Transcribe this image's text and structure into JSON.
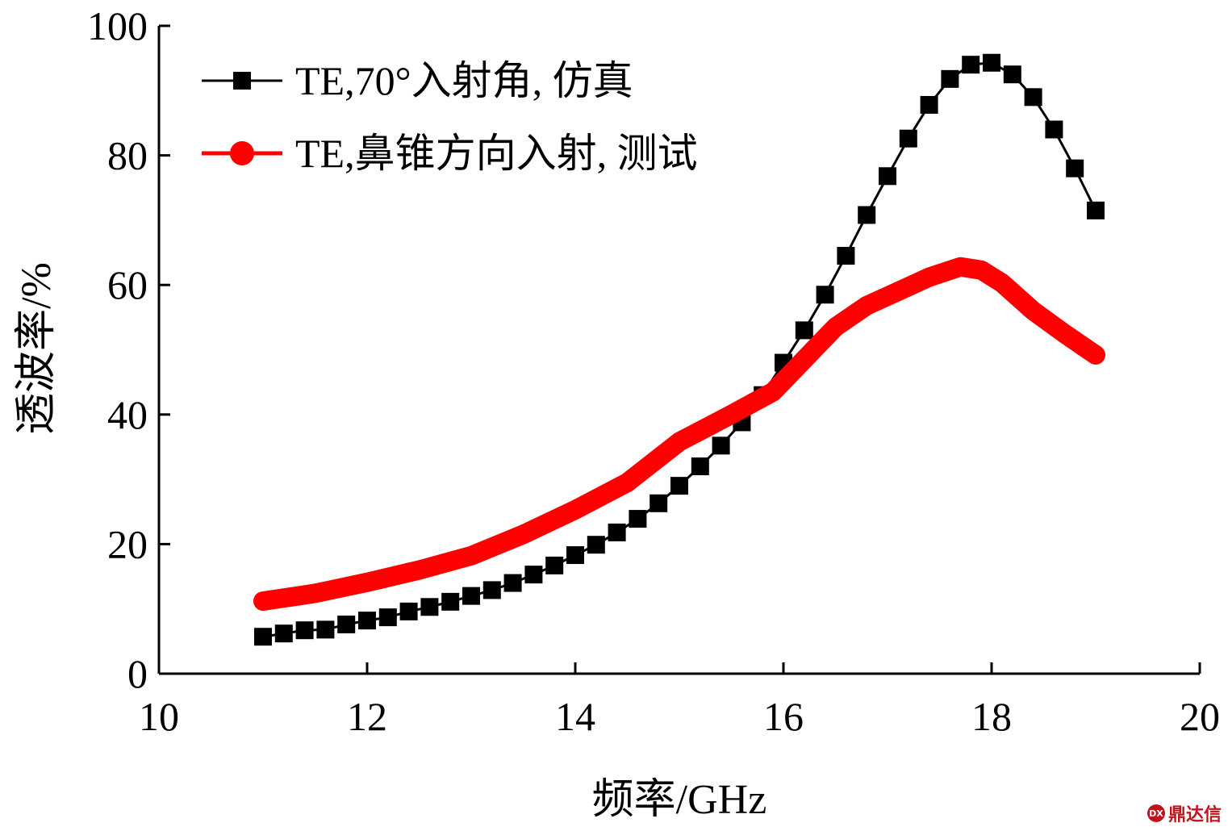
{
  "chart_data": {
    "type": "line",
    "xlabel": "频率/GHz",
    "ylabel": "透波率/%",
    "xlim": [
      10,
      20
    ],
    "ylim": [
      0,
      100
    ],
    "xticks": [
      10,
      12,
      14,
      16,
      18,
      20
    ],
    "yticks": [
      0,
      20,
      40,
      60,
      80,
      100
    ],
    "grid": false,
    "legend_position": "top-left",
    "series": [
      {
        "name": "TE,70°入射角, 仿真",
        "color": "#000000",
        "marker": "square",
        "x": [
          11.0,
          11.2,
          11.4,
          11.6,
          11.8,
          12.0,
          12.2,
          12.4,
          12.6,
          12.8,
          13.0,
          13.2,
          13.4,
          13.6,
          13.8,
          14.0,
          14.2,
          14.4,
          14.6,
          14.8,
          15.0,
          15.2,
          15.4,
          15.6,
          15.8,
          16.0,
          16.2,
          16.4,
          16.6,
          16.8,
          17.0,
          17.2,
          17.4,
          17.6,
          17.8,
          18.0,
          18.2,
          18.4,
          18.6,
          18.8,
          19.0
        ],
        "y": [
          5.7,
          6.2,
          6.7,
          6.8,
          7.6,
          8.2,
          8.7,
          9.6,
          10.3,
          11.1,
          12.0,
          12.9,
          14.0,
          15.3,
          16.7,
          18.3,
          19.9,
          21.8,
          23.9,
          26.3,
          29.0,
          32.0,
          35.2,
          38.8,
          43.0,
          48.0,
          53.0,
          58.5,
          64.5,
          70.8,
          76.8,
          82.6,
          87.8,
          91.8,
          94.0,
          94.3,
          92.5,
          89.0,
          84.0,
          78.0,
          71.5
        ]
      },
      {
        "name": "TE,鼻锥方向入射, 测试",
        "color": "#ff0000",
        "marker": "circle",
        "x": [
          11.0,
          11.5,
          12.0,
          12.5,
          13.0,
          13.5,
          14.0,
          14.5,
          15.0,
          15.5,
          15.9,
          16.2,
          16.5,
          16.8,
          17.1,
          17.4,
          17.7,
          17.9,
          18.1,
          18.4,
          18.7,
          19.0
        ],
        "y": [
          11.2,
          12.4,
          14.1,
          16.0,
          18.2,
          21.5,
          25.3,
          29.5,
          35.8,
          40.0,
          43.5,
          48.5,
          53.5,
          56.8,
          59.0,
          61.2,
          62.8,
          62.3,
          60.3,
          56.0,
          52.5,
          49.2
        ]
      }
    ]
  },
  "watermark": {
    "logo_text": "DX",
    "text": "鼎达信"
  }
}
